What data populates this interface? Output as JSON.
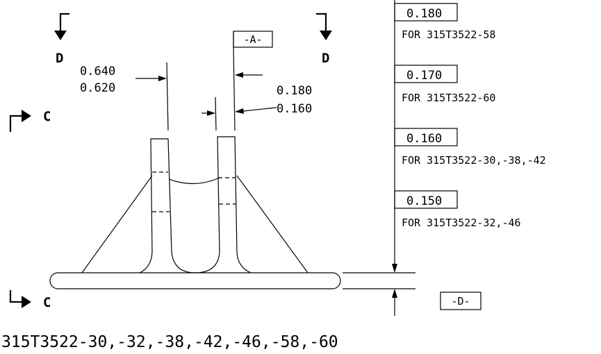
{
  "section_labels": {
    "d_left": "D",
    "d_right": "D",
    "c_top": "C",
    "c_bottom": "C"
  },
  "datums": {
    "a": "-A-",
    "d": "-D-"
  },
  "dimensions": {
    "width_max": "0.640",
    "width_min": "0.620",
    "thickness_max": "0.180",
    "thickness_min": "0.160"
  },
  "height_table": [
    {
      "value": "0.180",
      "note": "FOR 315T3522-58"
    },
    {
      "value": "0.170",
      "note": "FOR 315T3522-60"
    },
    {
      "value": "0.160",
      "note": "FOR 315T3522-30,-38,-42"
    },
    {
      "value": "0.150",
      "note": "FOR 315T3522-32,-46"
    }
  ],
  "part_numbers": "315T3522-30,-32,-38,-42,-46,-58,-60"
}
